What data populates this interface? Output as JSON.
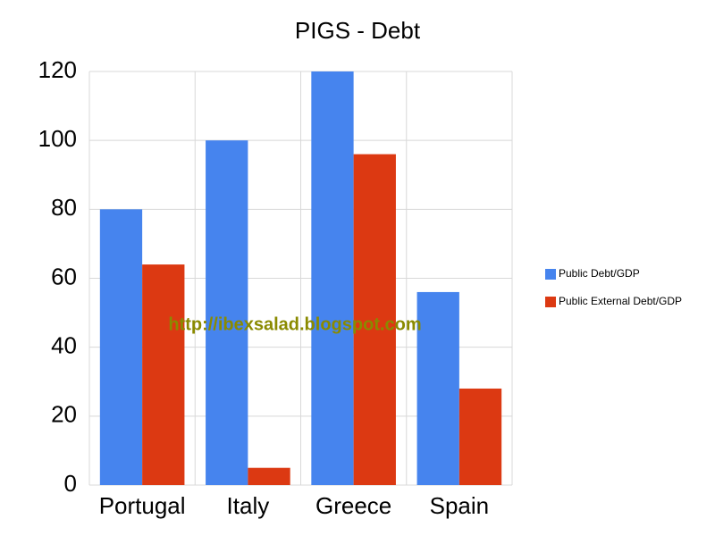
{
  "chart_data": {
    "type": "bar",
    "title": "PIGS - Debt",
    "categories": [
      "Portugal",
      "Italy",
      "Greece",
      "Spain"
    ],
    "series": [
      {
        "name": "Public Debt/GDP",
        "color": "#4684ee",
        "values": [
          80,
          100,
          120,
          56
        ]
      },
      {
        "name": "Public External Debt/GDP",
        "color": "#dc3912",
        "values": [
          64,
          5,
          96,
          28
        ]
      }
    ],
    "ylim": [
      0,
      120
    ],
    "yticks": [
      0,
      20,
      40,
      60,
      80,
      100,
      120
    ],
    "grid": true,
    "legend": "right",
    "annotation": "http://ibexsalad.blogspot.com"
  }
}
